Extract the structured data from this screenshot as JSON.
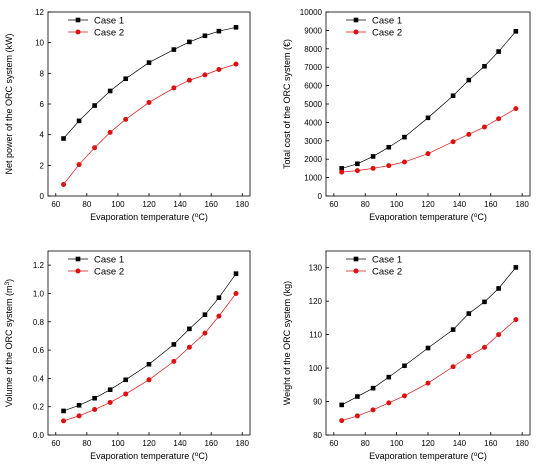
{
  "chart_data": [
    {
      "type": "line",
      "xlabel": "Evaporation  temperature",
      "xunit": "C",
      "ylabel": "Net power of the ORC system",
      "yunit": "kW",
      "xlim": [
        55,
        185
      ],
      "ylim": [
        0,
        12
      ],
      "xticks": [
        60,
        80,
        100,
        120,
        140,
        160,
        180
      ],
      "yticks": [
        0,
        2,
        4,
        6,
        8,
        10,
        12
      ],
      "grid": false,
      "legend": "top-left",
      "series": [
        {
          "name": "Case 1",
          "color": "#000000",
          "marker": "square",
          "x": [
            65,
            75,
            85,
            95,
            105,
            120,
            136,
            146,
            156,
            165,
            176
          ],
          "y": [
            3.75,
            4.9,
            5.9,
            6.85,
            7.65,
            8.7,
            9.55,
            10.05,
            10.45,
            10.75,
            11.0
          ]
        },
        {
          "name": "Case 2",
          "color": "#dd1111",
          "marker": "circle",
          "x": [
            65,
            75,
            85,
            95,
            105,
            120,
            136,
            146,
            156,
            165,
            176
          ],
          "y": [
            0.75,
            2.05,
            3.15,
            4.15,
            5.0,
            6.1,
            7.05,
            7.55,
            7.9,
            8.25,
            8.6
          ]
        }
      ]
    },
    {
      "type": "line",
      "xlabel": "Evaporation  temperature",
      "xunit": "C",
      "ylabel": "Total cost of the ORC system",
      "yunit": "€",
      "xlim": [
        55,
        185
      ],
      "ylim": [
        0,
        10000
      ],
      "xticks": [
        60,
        80,
        100,
        120,
        140,
        160,
        180
      ],
      "yticks": [
        0,
        1000,
        2000,
        3000,
        4000,
        5000,
        6000,
        7000,
        8000,
        9000,
        10000
      ],
      "grid": false,
      "legend": "top-left",
      "series": [
        {
          "name": "Case 1",
          "color": "#000000",
          "marker": "square",
          "x": [
            65,
            75,
            85,
            95,
            105,
            120,
            136,
            146,
            156,
            165,
            176
          ],
          "y": [
            1500,
            1750,
            2150,
            2650,
            3200,
            4250,
            5450,
            6300,
            7050,
            7850,
            8950
          ]
        },
        {
          "name": "Case 2",
          "color": "#dd1111",
          "marker": "circle",
          "x": [
            65,
            75,
            85,
            95,
            105,
            120,
            136,
            146,
            156,
            165,
            176
          ],
          "y": [
            1300,
            1380,
            1500,
            1650,
            1850,
            2300,
            2950,
            3350,
            3750,
            4200,
            4750
          ]
        }
      ]
    },
    {
      "type": "line",
      "xlabel": "Evaporation  temperature",
      "xunit": "C",
      "ylabel": "Volume of the ORC system",
      "yunit": "m",
      "yunit_sup": "3",
      "xlim": [
        55,
        185
      ],
      "ylim": [
        0,
        1.3
      ],
      "xticks": [
        60,
        80,
        100,
        120,
        140,
        160,
        180
      ],
      "yticks": [
        "0.0",
        "0.2",
        "0.4",
        "0.6",
        "0.8",
        "1.0",
        "1.2"
      ],
      "grid": false,
      "legend": "top-left",
      "series": [
        {
          "name": "Case 1",
          "color": "#000000",
          "marker": "square",
          "x": [
            65,
            75,
            85,
            95,
            105,
            120,
            136,
            146,
            156,
            165,
            176
          ],
          "y": [
            0.17,
            0.21,
            0.26,
            0.32,
            0.39,
            0.5,
            0.64,
            0.75,
            0.85,
            0.97,
            1.14
          ]
        },
        {
          "name": "Case 2",
          "color": "#dd1111",
          "marker": "circle",
          "x": [
            65,
            75,
            85,
            95,
            105,
            120,
            136,
            146,
            156,
            165,
            176
          ],
          "y": [
            0.1,
            0.135,
            0.18,
            0.23,
            0.29,
            0.39,
            0.52,
            0.62,
            0.72,
            0.84,
            1.0
          ]
        }
      ]
    },
    {
      "type": "line",
      "xlabel": "Evaporation  temperature",
      "xunit": "C",
      "ylabel": "Weight of the ORC system",
      "yunit": "kg",
      "xlim": [
        55,
        185
      ],
      "ylim": [
        80,
        135
      ],
      "xticks": [
        60,
        80,
        100,
        120,
        140,
        160,
        180
      ],
      "yticks": [
        80,
        90,
        100,
        110,
        120,
        130
      ],
      "grid": false,
      "legend": "top-left",
      "series": [
        {
          "name": "Case 1",
          "color": "#000000",
          "marker": "square",
          "x": [
            65,
            75,
            85,
            95,
            105,
            120,
            136,
            146,
            156,
            165,
            176
          ],
          "y": [
            89.0,
            91.5,
            94.0,
            97.3,
            100.7,
            106.0,
            111.5,
            116.3,
            119.8,
            123.8,
            130.1
          ]
        },
        {
          "name": "Case 2",
          "color": "#dd1111",
          "marker": "circle",
          "x": [
            65,
            75,
            85,
            95,
            105,
            120,
            136,
            146,
            156,
            165,
            176
          ],
          "y": [
            84.3,
            85.7,
            87.5,
            89.6,
            91.7,
            95.5,
            100.4,
            103.5,
            106.2,
            110.0,
            114.5
          ]
        }
      ]
    }
  ]
}
